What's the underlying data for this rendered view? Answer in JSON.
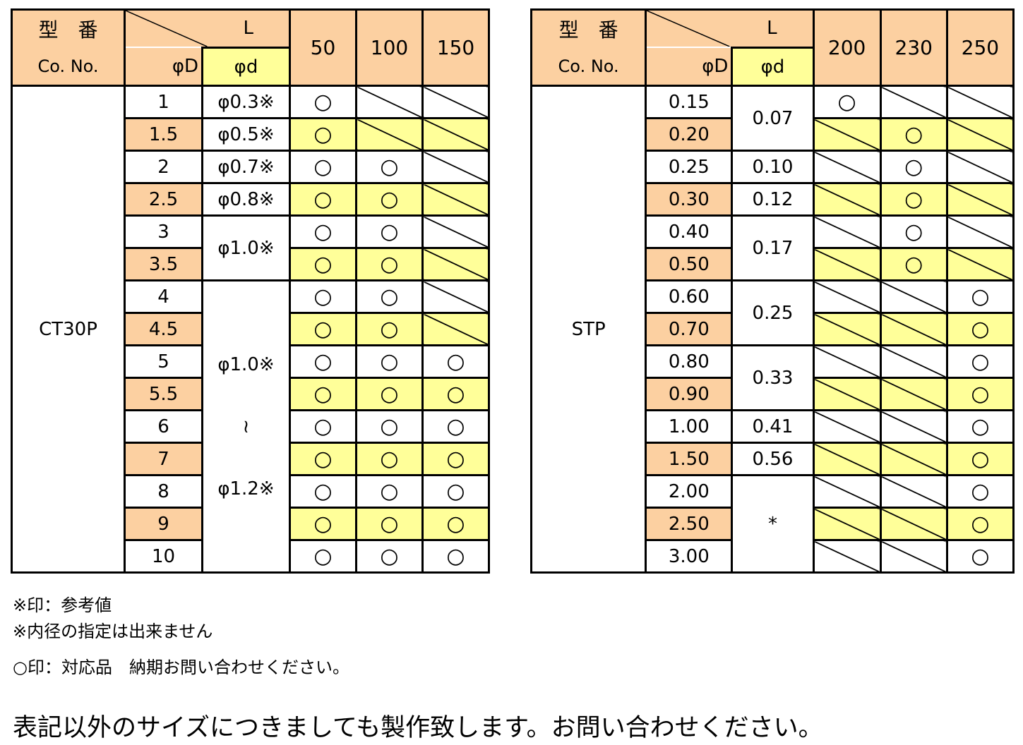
{
  "tables": [
    {
      "header": {
        "model": "型　番",
        "co_no": "Co. No.",
        "L": "L",
        "D": "φD",
        "d": "φd",
        "lengths": [
          "50",
          "100",
          "150"
        ]
      },
      "model": "CT30P",
      "rows": [
        {
          "D": "1",
          "d": "φ0.3※",
          "avail": [
            "○",
            null,
            null
          ]
        },
        {
          "D": "1.5",
          "d": "φ0.5※",
          "avail": [
            "○",
            null,
            null
          ]
        },
        {
          "D": "2",
          "d": "φ0.7※",
          "avail": [
            "○",
            "○",
            null
          ]
        },
        {
          "D": "2.5",
          "d": "φ0.8※",
          "avail": [
            "○",
            "○",
            null
          ]
        },
        {
          "D": "3",
          "d": "φ1.0※",
          "avail": [
            "○",
            "○",
            null
          ]
        },
        {
          "D": "3.5",
          "d": null,
          "avail": [
            "○",
            "○",
            null
          ]
        },
        {
          "D": "4",
          "d": [
            "φ1.0※",
            "≀",
            "φ1.2※"
          ],
          "avail": [
            "○",
            "○",
            null
          ]
        },
        {
          "D": "4.5",
          "d": null,
          "avail": [
            "○",
            "○",
            null
          ]
        },
        {
          "D": "5",
          "d": null,
          "avail": [
            "○",
            "○",
            "○"
          ]
        },
        {
          "D": "5.5",
          "d": null,
          "avail": [
            "○",
            "○",
            "○"
          ]
        },
        {
          "D": "6",
          "d": null,
          "avail": [
            "○",
            "○",
            "○"
          ]
        },
        {
          "D": "7",
          "d": null,
          "avail": [
            "○",
            "○",
            "○"
          ]
        },
        {
          "D": "8",
          "d": null,
          "avail": [
            "○",
            "○",
            "○"
          ]
        },
        {
          "D": "9",
          "d": null,
          "avail": [
            "○",
            "○",
            "○"
          ]
        },
        {
          "D": "10",
          "d": null,
          "avail": [
            "○",
            "○",
            "○"
          ]
        }
      ]
    },
    {
      "header": {
        "model": "型　番",
        "co_no": "Co. No.",
        "L": "L",
        "D": "φD",
        "d": "φd",
        "lengths": [
          "200",
          "230",
          "250"
        ]
      },
      "model": "STP",
      "rows": [
        {
          "D": "0.15",
          "d": "0.07",
          "avail": [
            "○",
            null,
            null
          ]
        },
        {
          "D": "0.20",
          "d": null,
          "avail": [
            null,
            "○",
            null
          ]
        },
        {
          "D": "0.25",
          "d": "0.10",
          "avail": [
            null,
            "○",
            null
          ]
        },
        {
          "D": "0.30",
          "d": "0.12",
          "avail": [
            null,
            "○",
            null
          ]
        },
        {
          "D": "0.40",
          "d": "0.17",
          "avail": [
            null,
            "○",
            null
          ]
        },
        {
          "D": "0.50",
          "d": null,
          "avail": [
            null,
            "○",
            null
          ]
        },
        {
          "D": "0.60",
          "d": "0.25",
          "avail": [
            null,
            null,
            "○"
          ]
        },
        {
          "D": "0.70",
          "d": null,
          "avail": [
            null,
            null,
            "○"
          ]
        },
        {
          "D": "0.80",
          "d": "0.33",
          "avail": [
            null,
            null,
            "○"
          ]
        },
        {
          "D": "0.90",
          "d": null,
          "avail": [
            null,
            null,
            "○"
          ]
        },
        {
          "D": "1.00",
          "d": "0.41",
          "avail": [
            null,
            null,
            "○"
          ]
        },
        {
          "D": "1.50",
          "d": "0.56",
          "avail": [
            null,
            null,
            "○"
          ]
        },
        {
          "D": "2.00",
          "d": "*",
          "avail": [
            null,
            null,
            "○"
          ]
        },
        {
          "D": "2.50",
          "d": null,
          "avail": [
            null,
            null,
            "○"
          ]
        },
        {
          "D": "3.00",
          "d": null,
          "avail": [
            null,
            null,
            "○"
          ]
        }
      ]
    }
  ],
  "notes": [
    "※印：参考値",
    "※内径の指定は出来ません",
    "○印：対応品　納期お問い合わせください。"
  ],
  "footer": "表記以外のサイズにつきましても製作致します。お問い合わせください。"
}
